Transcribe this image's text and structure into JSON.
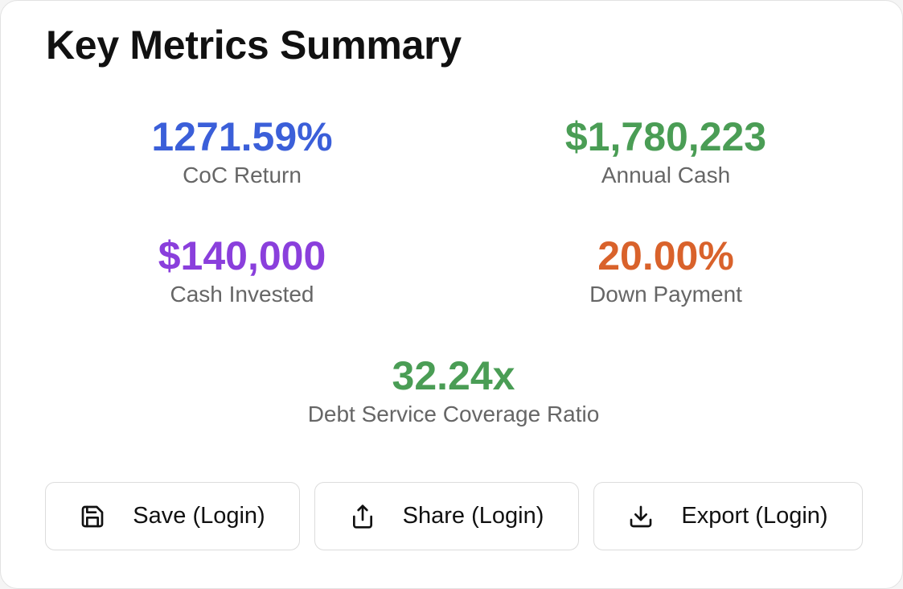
{
  "card": {
    "title": "Key Metrics Summary"
  },
  "metrics": {
    "coc_return": {
      "value": "1271.59%",
      "label": "CoC Return",
      "color": "#3b5fd9"
    },
    "annual_cash": {
      "value": "$1,780,223",
      "label": "Annual Cash",
      "color": "#4a9d55"
    },
    "cash_invested": {
      "value": "$140,000",
      "label": "Cash Invested",
      "color": "#8a3fdc"
    },
    "down_payment": {
      "value": "20.00%",
      "label": "Down Payment",
      "color": "#d9622b"
    },
    "dscr": {
      "value": "32.24x",
      "label": "Debt Service Coverage Ratio",
      "color": "#4a9d55"
    }
  },
  "actions": {
    "save": {
      "label": "Save (Login)",
      "icon": "save-icon"
    },
    "share": {
      "label": "Share (Login)",
      "icon": "share-icon"
    },
    "export": {
      "label": "Export (Login)",
      "icon": "download-icon"
    }
  }
}
